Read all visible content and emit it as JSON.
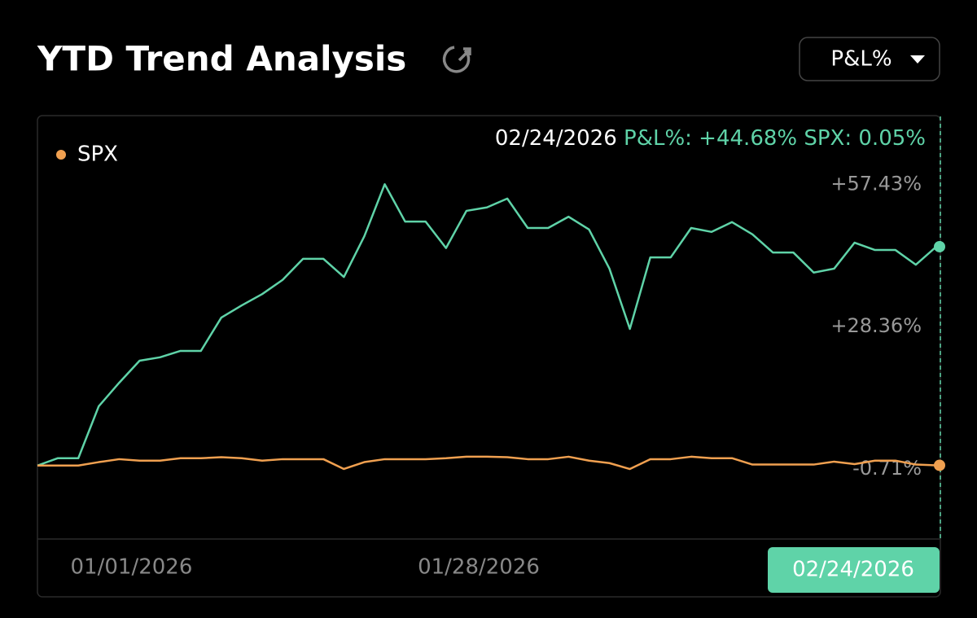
{
  "header": {
    "title": "YTD Trend Analysis",
    "dropdown": "P&L%"
  },
  "chart_data": {
    "type": "line",
    "tooltip": {
      "date": "02/24/2026",
      "pnl": "P&L%: +44.68%",
      "spx": "SPX: 0.05%"
    },
    "categories": [
      null,
      null,
      null,
      null,
      null,
      "01/01/2026",
      null,
      null,
      null,
      null,
      null,
      null,
      null,
      null,
      null,
      null,
      null,
      null,
      null,
      null,
      null,
      null,
      "01/28/2026",
      null,
      null,
      null,
      null,
      null,
      null,
      null,
      null,
      null,
      null,
      null,
      null,
      null,
      null,
      null,
      null,
      null,
      null,
      null,
      null,
      null,
      "02/24/2026"
    ],
    "series": [
      {
        "color": "#5fd3a8",
        "values": [
          0,
          1.5,
          1.5,
          12.1,
          16.9,
          21.4,
          22.1,
          23.4,
          23.4,
          30.2,
          32.7,
          35.0,
          37.9,
          42.2,
          42.2,
          38.5,
          46.8,
          57.43,
          49.8,
          49.8,
          44.4,
          52.0,
          52.7,
          54.5,
          48.5,
          48.5,
          50.8,
          48.2,
          40.2,
          27.9,
          42.5,
          42.5,
          48.5,
          47.7,
          49.7,
          47.2,
          43.5,
          43.5,
          39.4,
          40.2,
          45.5,
          44.0,
          44.0,
          41.0,
          44.68
        ]
      },
      {
        "name": "SPX",
        "color": "#f0a050",
        "values": [
          0,
          0,
          0,
          0.7,
          1.3,
          1.0,
          1.0,
          1.5,
          1.5,
          1.7,
          1.5,
          1.0,
          1.3,
          1.3,
          1.3,
          -0.7,
          0.7,
          1.3,
          1.3,
          1.3,
          1.5,
          1.8,
          1.8,
          1.7,
          1.3,
          1.3,
          1.8,
          1.0,
          0.5,
          -0.71,
          1.3,
          1.3,
          1.8,
          1.5,
          1.5,
          0.2,
          0.2,
          0.2,
          0.2,
          0.8,
          0.3,
          1.0,
          1.0,
          0.2,
          0.05
        ]
      }
    ],
    "ylim": [
      -15,
      71.27
    ],
    "yticks": [
      {
        "value": 57.43,
        "label": "+57.43%"
      },
      {
        "value": 28.36,
        "label": "+28.36%"
      },
      {
        "value": -0.71,
        "label": "-0.71%"
      }
    ],
    "legend": "top-left"
  }
}
